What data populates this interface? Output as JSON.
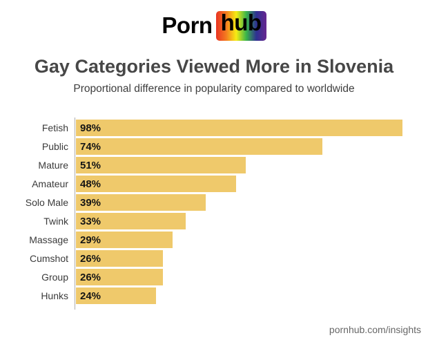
{
  "logo": {
    "prefix": "Porn",
    "suffix": "hub"
  },
  "title": "Gay Categories Viewed More in Slovenia",
  "subtitle": "Proportional difference in popularity compared to worldwide",
  "footer": "pornhub.com/insights",
  "colors": {
    "bar": "#EFC96B",
    "axis": "#ADADAD",
    "title_text": "#474747",
    "rainbow": [
      "#E93323",
      "#F47B20",
      "#F7EC13",
      "#39B54A",
      "#2E3192",
      "#67268F"
    ]
  },
  "chart_data": {
    "type": "bar",
    "orientation": "horizontal",
    "title": "Gay Categories Viewed More in Slovenia",
    "subtitle": "Proportional difference in popularity compared to worldwide",
    "categories": [
      "Fetish",
      "Public",
      "Mature",
      "Amateur",
      "Solo Male",
      "Twink",
      "Massage",
      "Cumshot",
      "Group",
      "Hunks"
    ],
    "values": [
      98,
      74,
      51,
      48,
      39,
      33,
      29,
      26,
      26,
      24
    ],
    "value_labels": [
      "98%",
      "74%",
      "51%",
      "48%",
      "39%",
      "33%",
      "29%",
      "26%",
      "26%",
      "24%"
    ],
    "unit": "%",
    "xlim": [
      0,
      100
    ],
    "grid": false,
    "legend": false,
    "bar_color": "#EFC96B"
  }
}
